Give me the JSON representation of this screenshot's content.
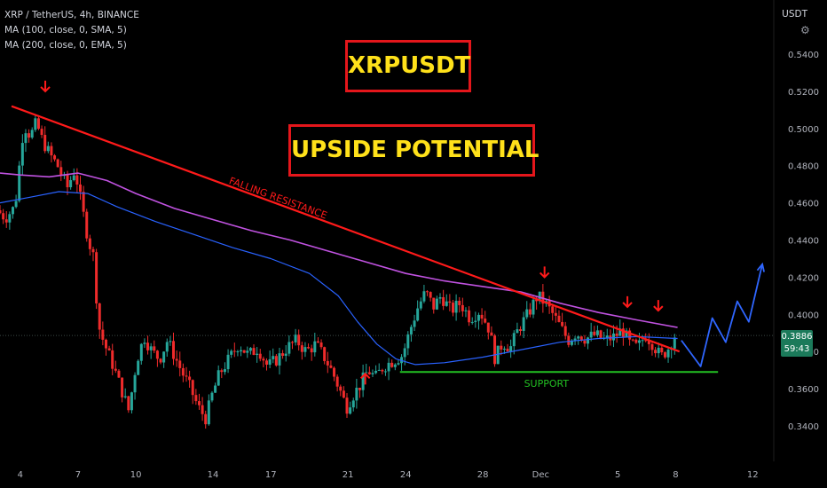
{
  "legend": {
    "symbol": "XRP / TetherUS, 4h, BINANCE",
    "ma100": "MA (100, close, 0, SMA, 5)",
    "ma200": "MA (200, close, 0, EMA, 5)"
  },
  "unit": "USDT",
  "title": "XRPUSDT",
  "subtitle": "UPSIDE POTENTIAL",
  "price_badge": {
    "price": "0.3886",
    "countdown": "59:43"
  },
  "colors": {
    "up": "#26a69a",
    "down": "#ef2b2b",
    "resistance": "#ff1a1a",
    "support": "#22c022",
    "ma100": "#2962ff",
    "ma200": "#c052e0",
    "projection": "#2f66ff",
    "title_text": "#ffe11a",
    "title_border": "#e4161b"
  },
  "chart_data": {
    "type": "candlestick",
    "yaxis": {
      "ticks": [
        0.34,
        0.36,
        0.38,
        0.4,
        0.42,
        0.44,
        0.46,
        0.48,
        0.5,
        0.52,
        0.54
      ],
      "tick_labels": [
        "0.3400",
        "0.3600",
        "0.3800",
        "0.4000",
        "0.4200",
        "0.4400",
        "0.4600",
        "0.4800",
        "0.5000",
        "0.5200",
        "0.5400"
      ],
      "ylim": [
        0.32,
        0.565
      ],
      "position": "right"
    },
    "xaxis": {
      "xlim": [
        2.95,
        13.3
      ],
      "ticks": [
        {
          "label": "4",
          "t": 4
        },
        {
          "label": "7",
          "t": 7
        },
        {
          "label": "10",
          "t": 10
        },
        {
          "label": "14",
          "t": 14
        },
        {
          "label": "17",
          "t": 17
        },
        {
          "label": "21",
          "t": 21
        },
        {
          "label": "24",
          "t": 24
        },
        {
          "label": "28",
          "t": 28
        },
        {
          "label": "Dec",
          "t": 31
        },
        {
          "label": "5",
          "t": 35
        },
        {
          "label": "8",
          "t": 38
        },
        {
          "label": "12",
          "t": 42
        }
      ]
    },
    "price_path": [
      {
        "d": 2.95,
        "p": 0.456
      },
      {
        "d": 3.4,
        "p": 0.452
      },
      {
        "d": 3.9,
        "p": 0.458
      },
      {
        "d": 4.1,
        "p": 0.478
      },
      {
        "d": 4.35,
        "p": 0.502
      },
      {
        "d": 4.7,
        "p": 0.496
      },
      {
        "d": 5.0,
        "p": 0.503
      },
      {
        "d": 5.3,
        "p": 0.494
      },
      {
        "d": 5.7,
        "p": 0.486
      },
      {
        "d": 6.1,
        "p": 0.48
      },
      {
        "d": 6.6,
        "p": 0.468
      },
      {
        "d": 7.0,
        "p": 0.478
      },
      {
        "d": 7.4,
        "p": 0.456
      },
      {
        "d": 7.7,
        "p": 0.44
      },
      {
        "d": 8.0,
        "p": 0.43
      },
      {
        "d": 8.2,
        "p": 0.395
      },
      {
        "d": 8.5,
        "p": 0.385
      },
      {
        "d": 9.0,
        "p": 0.372
      },
      {
        "d": 9.4,
        "p": 0.36
      },
      {
        "d": 9.8,
        "p": 0.348
      },
      {
        "d": 10.2,
        "p": 0.375
      },
      {
        "d": 10.6,
        "p": 0.388
      },
      {
        "d": 11.0,
        "p": 0.38
      },
      {
        "d": 11.4,
        "p": 0.376
      },
      {
        "d": 11.8,
        "p": 0.386
      },
      {
        "d": 12.2,
        "p": 0.377
      },
      {
        "d": 12.6,
        "p": 0.368
      },
      {
        "d": 13.0,
        "p": 0.36
      },
      {
        "d": 13.4,
        "p": 0.35
      },
      {
        "d": 13.8,
        "p": 0.344
      },
      {
        "d": 14.1,
        "p": 0.356
      },
      {
        "d": 14.5,
        "p": 0.368
      },
      {
        "d": 15.0,
        "p": 0.376
      },
      {
        "d": 15.5,
        "p": 0.384
      },
      {
        "d": 16.0,
        "p": 0.378
      },
      {
        "d": 16.5,
        "p": 0.382
      },
      {
        "d": 17.0,
        "p": 0.372
      },
      {
        "d": 17.5,
        "p": 0.376
      },
      {
        "d": 18.0,
        "p": 0.382
      },
      {
        "d": 18.5,
        "p": 0.386
      },
      {
        "d": 19.0,
        "p": 0.38
      },
      {
        "d": 19.5,
        "p": 0.384
      },
      {
        "d": 20.0,
        "p": 0.376
      },
      {
        "d": 20.4,
        "p": 0.368
      },
      {
        "d": 20.8,
        "p": 0.358
      },
      {
        "d": 21.1,
        "p": 0.35
      },
      {
        "d": 21.4,
        "p": 0.356
      },
      {
        "d": 21.8,
        "p": 0.362
      },
      {
        "d": 22.2,
        "p": 0.37
      },
      {
        "d": 22.6,
        "p": 0.366
      },
      {
        "d": 23.0,
        "p": 0.372
      },
      {
        "d": 23.5,
        "p": 0.375
      },
      {
        "d": 24.0,
        "p": 0.378
      },
      {
        "d": 24.4,
        "p": 0.392
      },
      {
        "d": 24.8,
        "p": 0.404
      },
      {
        "d": 25.2,
        "p": 0.412
      },
      {
        "d": 25.6,
        "p": 0.404
      },
      {
        "d": 26.0,
        "p": 0.41
      },
      {
        "d": 26.5,
        "p": 0.402
      },
      {
        "d": 27.0,
        "p": 0.406
      },
      {
        "d": 27.5,
        "p": 0.398
      },
      {
        "d": 28.0,
        "p": 0.402
      },
      {
        "d": 28.5,
        "p": 0.392
      },
      {
        "d": 28.8,
        "p": 0.376
      },
      {
        "d": 29.2,
        "p": 0.385
      },
      {
        "d": 29.6,
        "p": 0.382
      },
      {
        "d": 30.0,
        "p": 0.392
      },
      {
        "d": 30.5,
        "p": 0.4
      },
      {
        "d": 31.0,
        "p": 0.41
      },
      {
        "d": 31.4,
        "p": 0.406
      },
      {
        "d": 31.8,
        "p": 0.4
      },
      {
        "d": 32.2,
        "p": 0.393
      },
      {
        "d": 32.6,
        "p": 0.386
      },
      {
        "d": 33.0,
        "p": 0.39
      },
      {
        "d": 33.5,
        "p": 0.387
      },
      {
        "d": 34.0,
        "p": 0.389
      },
      {
        "d": 34.5,
        "p": 0.386
      },
      {
        "d": 35.0,
        "p": 0.388
      },
      {
        "d": 35.4,
        "p": 0.392
      },
      {
        "d": 35.8,
        "p": 0.384
      },
      {
        "d": 36.2,
        "p": 0.382
      },
      {
        "d": 36.6,
        "p": 0.389
      },
      {
        "d": 37.0,
        "p": 0.384
      },
      {
        "d": 37.4,
        "p": 0.377
      },
      {
        "d": 37.8,
        "p": 0.382
      },
      {
        "d": 38.1,
        "p": 0.3886
      }
    ],
    "series": [
      {
        "name": "MA (100, close, 0, SMA, 5)",
        "points": [
          {
            "d": 2.95,
            "p": 0.46
          },
          {
            "d": 4.5,
            "p": 0.463
          },
          {
            "d": 6.0,
            "p": 0.466
          },
          {
            "d": 7.5,
            "p": 0.465
          },
          {
            "d": 9.0,
            "p": 0.458
          },
          {
            "d": 11.0,
            "p": 0.45
          },
          {
            "d": 13.0,
            "p": 0.443
          },
          {
            "d": 15.0,
            "p": 0.436
          },
          {
            "d": 17.0,
            "p": 0.43
          },
          {
            "d": 19.0,
            "p": 0.422
          },
          {
            "d": 20.5,
            "p": 0.41
          },
          {
            "d": 21.5,
            "p": 0.396
          },
          {
            "d": 22.5,
            "p": 0.384
          },
          {
            "d": 23.5,
            "p": 0.376
          },
          {
            "d": 24.5,
            "p": 0.373
          },
          {
            "d": 26.0,
            "p": 0.374
          },
          {
            "d": 28.0,
            "p": 0.377
          },
          {
            "d": 30.0,
            "p": 0.381
          },
          {
            "d": 32.0,
            "p": 0.385
          },
          {
            "d": 34.0,
            "p": 0.387
          },
          {
            "d": 36.0,
            "p": 0.388
          },
          {
            "d": 38.1,
            "p": 0.387
          }
        ]
      },
      {
        "name": "MA (200, close, 0, EMA, 5)",
        "points": [
          {
            "d": 2.95,
            "p": 0.476
          },
          {
            "d": 4.0,
            "p": 0.475
          },
          {
            "d": 5.5,
            "p": 0.474
          },
          {
            "d": 7.0,
            "p": 0.476
          },
          {
            "d": 8.5,
            "p": 0.472
          },
          {
            "d": 10.0,
            "p": 0.465
          },
          {
            "d": 12.0,
            "p": 0.457
          },
          {
            "d": 14.0,
            "p": 0.451
          },
          {
            "d": 16.0,
            "p": 0.445
          },
          {
            "d": 18.0,
            "p": 0.44
          },
          {
            "d": 20.0,
            "p": 0.434
          },
          {
            "d": 22.0,
            "p": 0.428
          },
          {
            "d": 24.0,
            "p": 0.422
          },
          {
            "d": 26.0,
            "p": 0.418
          },
          {
            "d": 28.0,
            "p": 0.415
          },
          {
            "d": 30.0,
            "p": 0.412
          },
          {
            "d": 32.0,
            "p": 0.406
          },
          {
            "d": 34.0,
            "p": 0.401
          },
          {
            "d": 36.0,
            "p": 0.397
          },
          {
            "d": 38.1,
            "p": 0.393
          }
        ]
      }
    ],
    "resistance": {
      "label": "FALLING RESISTANCE",
      "from": {
        "d": 3.55,
        "p": 0.512
      },
      "to": {
        "d": 38.2,
        "p": 0.38
      }
    },
    "support": {
      "label": "SUPPORT",
      "from": {
        "d": 23.7,
        "p": 0.369
      },
      "to": {
        "d": 40.2,
        "p": 0.369
      }
    },
    "projection": [
      {
        "d": 38.3,
        "p": 0.386
      },
      {
        "d": 39.3,
        "p": 0.372
      },
      {
        "d": 39.9,
        "p": 0.398
      },
      {
        "d": 40.6,
        "p": 0.385
      },
      {
        "d": 41.2,
        "p": 0.407
      },
      {
        "d": 41.8,
        "p": 0.396
      },
      {
        "d": 42.5,
        "p": 0.427
      }
    ],
    "markers": [
      {
        "type": "down",
        "d": 5.3,
        "p": 0.52
      },
      {
        "type": "down",
        "d": 31.2,
        "p": 0.42
      },
      {
        "type": "down",
        "d": 35.5,
        "p": 0.404
      },
      {
        "type": "down",
        "d": 37.1,
        "p": 0.402
      },
      {
        "type": "up",
        "d": 21.9,
        "p": 0.368
      }
    ]
  }
}
